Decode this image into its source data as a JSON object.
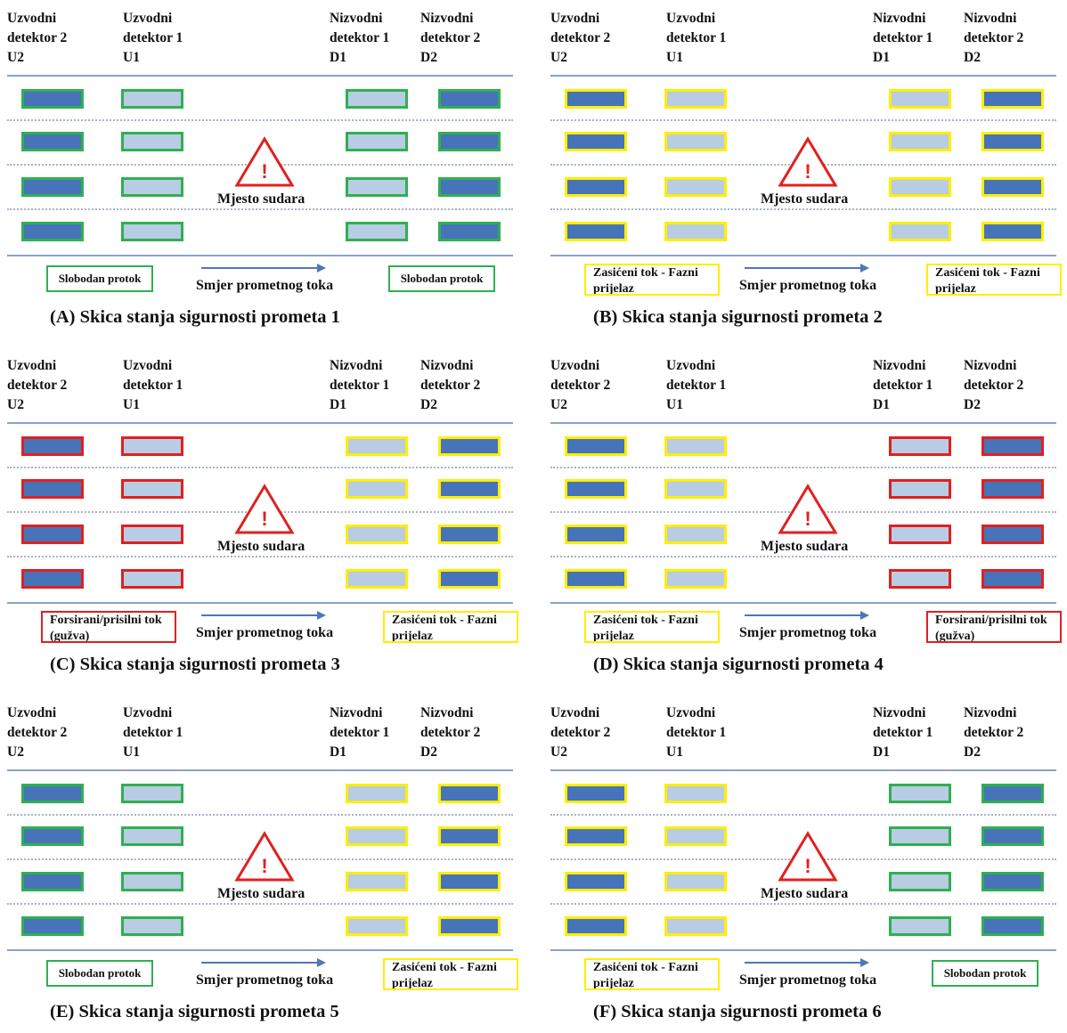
{
  "colors": {
    "dark_fill": "#4774b8",
    "light_fill": "#b8cce4",
    "green": "#2fb050",
    "yellow": "#ffee00",
    "red": "#e02020",
    "road": "#8aa2c8"
  },
  "labels": {
    "u2": [
      "Uzvodni",
      "detektor 2",
      "U2"
    ],
    "u1": [
      "Uzvodni",
      "detektor 1",
      "U1"
    ],
    "d1": [
      "Nizvodni",
      "detektor 1",
      "D1"
    ],
    "d2": [
      "Nizvodni",
      "detektor 2",
      "D2"
    ],
    "crash_site": "Mjesto sudara",
    "direction": "Smjer prometnog toka",
    "warning_icon": "warning-triangle-icon",
    "warning_mark": "!"
  },
  "states": {
    "free": {
      "label": "Slobodan protok",
      "color": "green"
    },
    "sync": {
      "label": "Zasićeni tok - Fazni prijelaz",
      "color": "yellow"
    },
    "jam": {
      "label": "Forsirani/prisilni tok (gužva)",
      "color": "red"
    }
  },
  "panels": [
    {
      "caption": "(A) Skica stanja sigurnosti prometa 1",
      "upstream": "free",
      "downstream": "free"
    },
    {
      "caption": "(B) Skica stanja sigurnosti prometa 2",
      "upstream": "sync",
      "downstream": "sync"
    },
    {
      "caption": "(C) Skica stanja sigurnosti prometa 3",
      "upstream": "jam",
      "downstream": "sync"
    },
    {
      "caption": "(D) Skica stanja sigurnosti prometa 4",
      "upstream": "sync",
      "downstream": "jam"
    },
    {
      "caption": "(E) Skica stanja sigurnosti prometa 5",
      "upstream": "free",
      "downstream": "sync"
    },
    {
      "caption": "(F) Skica stanja sigurnosti prometa 6",
      "upstream": "sync",
      "downstream": "free"
    }
  ]
}
